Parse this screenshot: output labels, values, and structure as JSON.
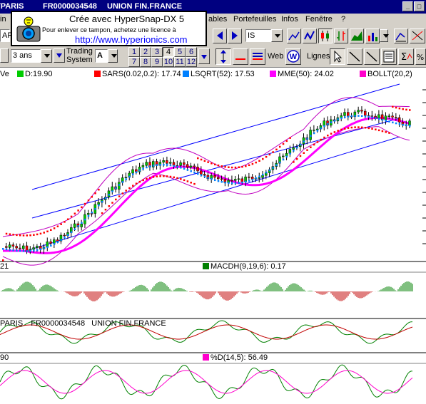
{
  "titlebar": {
    "left": "TPARIS",
    "code": "FR0000034548",
    "name": "UNION FIN.FRANCE"
  },
  "stamp": {
    "title": "Crée avec HyperSnap-DX 5",
    "subtitle": "Pour enlever ce tampon, achetez une licence à",
    "url": "http://www.hyperionics.com"
  },
  "menu": {
    "items": [
      "ables",
      "Portefeuilles",
      "Infos",
      "Fenêtre",
      "?"
    ]
  },
  "toolbar1": {
    "left_fragment": "ARI",
    "symbol_value": "IS"
  },
  "toolbar2": {
    "period_value": "3 ans",
    "trading_label_1": "Trading",
    "trading_label_2": "System",
    "trading_value": "A",
    "num_row1": [
      "1",
      "2",
      "3",
      "4",
      "5",
      "6"
    ],
    "num_row2": [
      "7",
      "8",
      "9",
      "10",
      "11",
      "12"
    ],
    "web_label": "Web",
    "lignes_label": "Lignes"
  },
  "legend_main": {
    "ve": "Ve",
    "d": "D:19.90",
    "sars": "SARS(0.02,0.2): 17.74",
    "lsqrt": "LSQRT(52): 17.53",
    "mme": "MME(50): 24.02",
    "bollt": "BOLLT(20,2)"
  },
  "legend_macd": {
    "left": "21",
    "label": "MACDH(9,19,6):  0.17"
  },
  "legend_osc": {
    "left": "PARIS",
    "code": "FR0000034548",
    "name": "UNION FIN.FRANCE"
  },
  "legend_stoch": {
    "left": "90",
    "label": "%D(14,5): 56.49"
  },
  "colors": {
    "titlebar": "#000080",
    "face": "#d4d0c8",
    "candle_up": "#00cc00",
    "candle_down": "#ff0000",
    "sar": "#ff0000",
    "lsqrt": "#0080ff",
    "mme": "#ff00ff",
    "boll": "#c000c0",
    "channel": "#0000ff"
  }
}
